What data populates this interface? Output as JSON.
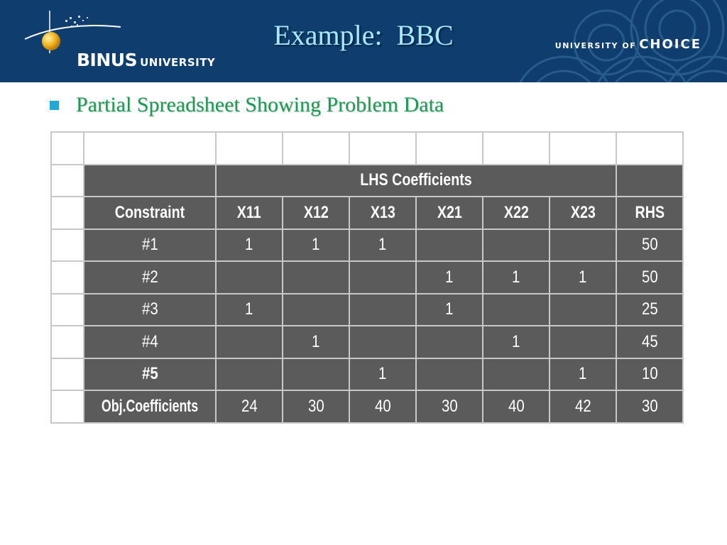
{
  "header": {
    "title": "Example:  BBC",
    "brand_name": "BINUS",
    "brand_suffix": "UNIVERSITY",
    "tagline_prefix": "UNIVERSITY OF",
    "tagline_word": "CHOICE",
    "background_color": "#0f3e6e",
    "title_color": "#a9e8ff"
  },
  "bullet": {
    "text": "Partial Spreadsheet Showing Problem Data",
    "color": "#1e9a55",
    "marker_color": "#26a8d6"
  },
  "table": {
    "cell_color": "#5b5b5b",
    "group_header": "LHS Coefficients",
    "columns": [
      "Constraint",
      "X11",
      "X12",
      "X13",
      "X21",
      "X22",
      "X23",
      "RHS"
    ],
    "rows": [
      {
        "label": "#1",
        "values": [
          "1",
          "1",
          "1",
          "",
          "",
          "",
          "50"
        ]
      },
      {
        "label": "#2",
        "values": [
          "",
          "",
          "",
          "1",
          "1",
          "1",
          "50"
        ]
      },
      {
        "label": "#3",
        "values": [
          "1",
          "",
          "",
          "1",
          "",
          "",
          "25"
        ]
      },
      {
        "label": "#4",
        "values": [
          "",
          "1",
          "",
          "",
          "1",
          "",
          "45"
        ]
      },
      {
        "label": "#5",
        "values": [
          "",
          "",
          "1",
          "",
          "",
          "1",
          "10"
        ]
      },
      {
        "label": "Obj.Coefficients",
        "values": [
          "24",
          "30",
          "40",
          "30",
          "40",
          "42",
          "30"
        ]
      }
    ]
  }
}
